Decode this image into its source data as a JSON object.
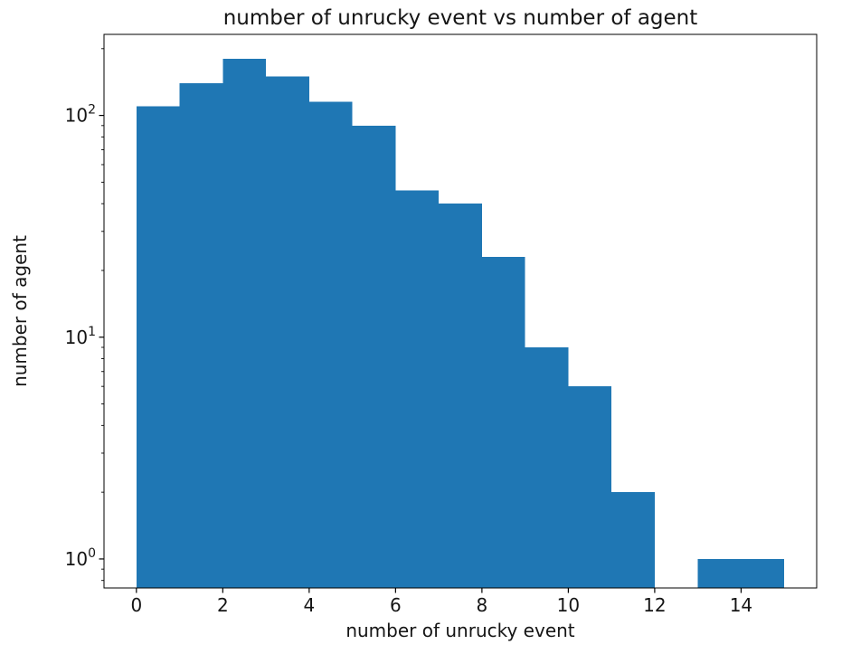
{
  "chart_data": {
    "type": "bar",
    "subtype": "histogram",
    "title": "number of unrucky event vs number of agent",
    "xlabel": "number of unrucky event",
    "ylabel": "number of agent",
    "bar_color": "#1f77b4",
    "axis_color": "#000000",
    "yscale": "log",
    "grid": false,
    "legend": false,
    "bin_edges": [
      0,
      1,
      2,
      3,
      4,
      5,
      6,
      7,
      8,
      9,
      10,
      11,
      12,
      13,
      14,
      15
    ],
    "values": [
      110,
      140,
      180,
      150,
      115,
      90,
      46,
      40,
      23,
      9,
      6,
      2,
      0,
      1,
      1
    ],
    "x_ticks": [
      0,
      2,
      4,
      6,
      8,
      10,
      12,
      14
    ],
    "y_ticks": [
      {
        "value": 1,
        "label_base": "10",
        "label_exponent": "0"
      },
      {
        "value": 10,
        "label_base": "10",
        "label_exponent": "1"
      },
      {
        "value": 100,
        "label_base": "10",
        "label_exponent": "2"
      }
    ],
    "xlim": [
      -0.75,
      15.75
    ],
    "ylim": [
      0.74,
      232
    ]
  }
}
